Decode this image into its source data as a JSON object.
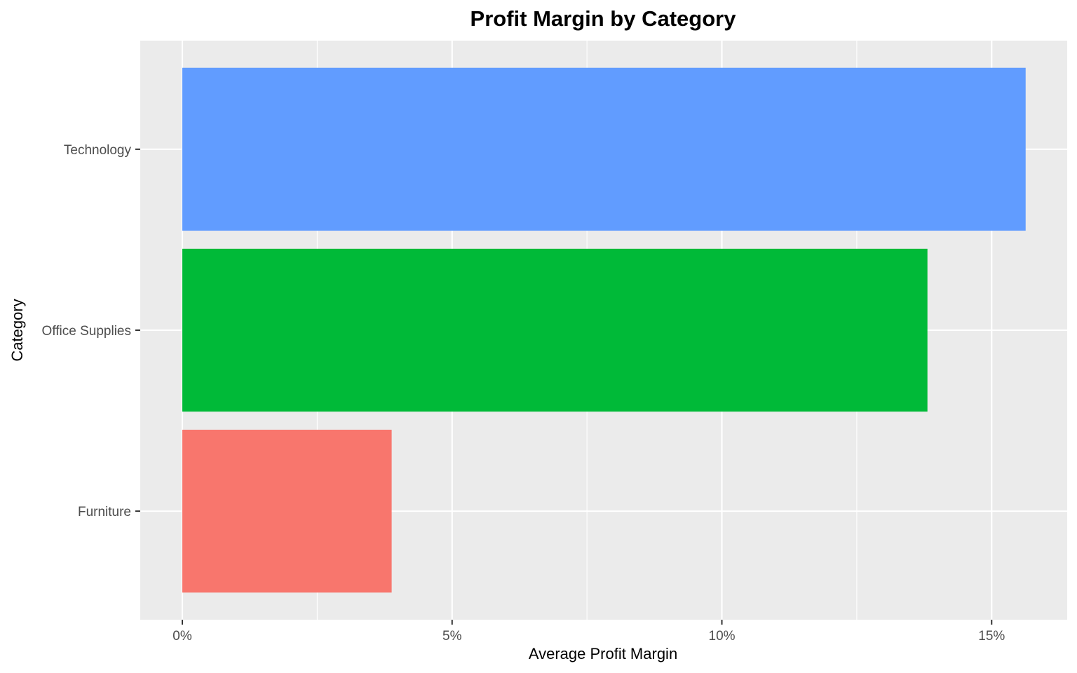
{
  "chart_data": {
    "type": "bar",
    "orientation": "horizontal",
    "title": "Profit Margin by Category",
    "xlabel": "Average Profit Margin",
    "ylabel": "Category",
    "categories": [
      "Furniture",
      "Office Supplies",
      "Technology"
    ],
    "values": [
      0.0388,
      0.1381,
      0.1563
    ],
    "colors": [
      "#F8766D",
      "#00BA38",
      "#619CFF"
    ],
    "xlim": [
      -0.0078,
      0.164
    ],
    "x_ticks": [
      {
        "value": 0,
        "label": "0%"
      },
      {
        "value": 0.05,
        "label": "5%"
      },
      {
        "value": 0.1,
        "label": "10%"
      },
      {
        "value": 0.15,
        "label": "15%"
      }
    ],
    "x_minor_ticks": [
      0.025,
      0.075,
      0.125
    ],
    "grid": true,
    "legend": "none",
    "panel_background": "#EBEBEB",
    "grid_color": "#FFFFFF"
  }
}
